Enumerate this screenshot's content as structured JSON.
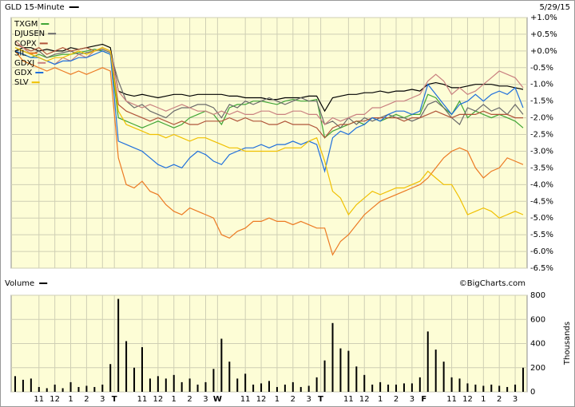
{
  "chart_data": [
    {
      "type": "line",
      "interval": "15-Minute",
      "date": "5/29/15",
      "legend": "upper left",
      "grid": true,
      "ylim": [
        -6.5,
        1.0
      ],
      "yticks": [
        {
          "value": 1.0,
          "label": "+1.0%"
        },
        {
          "value": 0.5,
          "label": "+0.5%"
        },
        {
          "value": 0,
          "label": "+0.0%"
        },
        {
          "value": -0.5,
          "label": "-0.5%"
        },
        {
          "value": -1.0,
          "label": "-1.0%"
        },
        {
          "value": -1.5,
          "label": "-1.5%"
        },
        {
          "value": -2.0,
          "label": "-2.0%"
        },
        {
          "value": -2.5,
          "label": "-2.5%"
        },
        {
          "value": -3.0,
          "label": "-3.0%"
        },
        {
          "value": -3.5,
          "label": "-3.5%"
        },
        {
          "value": -4.0,
          "label": "-4.0%"
        },
        {
          "value": -4.5,
          "label": "-4.5%"
        },
        {
          "value": -5.0,
          "label": "-5.0%"
        },
        {
          "value": -5.5,
          "label": "-5.5%"
        },
        {
          "value": -6.0,
          "label": "-6.0%"
        },
        {
          "value": -6.5,
          "label": "-6.5%"
        }
      ],
      "series": [
        {
          "name": "GLD",
          "color": "#000000",
          "values": [
            0.0,
            0.1,
            0.1,
            0.0,
            0.05,
            0.0,
            0.0,
            0.1,
            0.05,
            0.1,
            0.15,
            0.2,
            0.1,
            -1.2,
            -1.3,
            -1.35,
            -1.3,
            -1.35,
            -1.4,
            -1.35,
            -1.3,
            -1.3,
            -1.35,
            -1.3,
            -1.3,
            -1.3,
            -1.3,
            -1.35,
            -1.35,
            -1.4,
            -1.4,
            -1.4,
            -1.45,
            -1.45,
            -1.4,
            -1.4,
            -1.4,
            -1.35,
            -1.35,
            -1.8,
            -1.4,
            -1.35,
            -1.3,
            -1.3,
            -1.25,
            -1.25,
            -1.2,
            -1.25,
            -1.2,
            -1.2,
            -1.15,
            -1.2,
            -1.0,
            -0.95,
            -1.0,
            -1.1,
            -1.1,
            -1.05,
            -1.0,
            -1.0,
            -1.0,
            -1.05,
            -1.05,
            -1.1,
            -1.15
          ]
        },
        {
          "name": "TXGM",
          "color": "#3fa535",
          "values": [
            0,
            -0.1,
            -0.2,
            -0.1,
            -0.2,
            -0.15,
            -0.1,
            -0.1,
            -0.05,
            0,
            0.05,
            0,
            -0.1,
            -2.0,
            -2.1,
            -2.2,
            -2.3,
            -2.2,
            -2.1,
            -2.2,
            -2.3,
            -2.2,
            -2.0,
            -1.9,
            -1.8,
            -1.9,
            -2.2,
            -1.7,
            -1.6,
            -1.6,
            -1.5,
            -1.5,
            -1.55,
            -1.6,
            -1.5,
            -1.45,
            -1.5,
            -1.5,
            -1.45,
            -2.6,
            -2.4,
            -2.3,
            -2.2,
            -2.1,
            -2.2,
            -2.0,
            -2.1,
            -2.0,
            -1.9,
            -2.0,
            -1.9,
            -1.9,
            -1.3,
            -1.4,
            -1.7,
            -1.9,
            -1.5,
            -2.0,
            -1.8,
            -1.9,
            -2.0,
            -1.9,
            -2.0,
            -2.1,
            -2.3
          ]
        },
        {
          "name": "DJUSEN",
          "color": "#6b6b6b",
          "values": [
            0.1,
            0.0,
            -0.1,
            0.0,
            -0.2,
            -0.1,
            -0.05,
            0,
            -0.1,
            -0.05,
            0,
            0.05,
            -0.05,
            -0.9,
            -1.5,
            -1.7,
            -1.6,
            -1.8,
            -1.9,
            -2.0,
            -1.8,
            -1.7,
            -1.7,
            -1.6,
            -1.6,
            -1.7,
            -2.0,
            -1.6,
            -1.7,
            -1.5,
            -1.6,
            -1.5,
            -1.4,
            -1.5,
            -1.6,
            -1.5,
            -1.4,
            -1.5,
            -1.5,
            -2.2,
            -2.1,
            -2.3,
            -2.0,
            -2.2,
            -2.0,
            -2.1,
            -2.0,
            -1.9,
            -2.0,
            -2.0,
            -2.1,
            -2.0,
            -1.6,
            -1.5,
            -1.7,
            -2.0,
            -2.2,
            -1.7,
            -1.8,
            -1.6,
            -1.8,
            -1.7,
            -1.9,
            -1.6,
            -1.9
          ]
        },
        {
          "name": "COPX",
          "color": "#b0553a",
          "values": [
            0.2,
            0.1,
            0,
            0.1,
            -0.1,
            0,
            0.1,
            0,
            0.05,
            0.1,
            0,
            0.1,
            0,
            -1.6,
            -1.8,
            -1.9,
            -2.0,
            -2.1,
            -2.0,
            -2.1,
            -2.2,
            -2.1,
            -2.2,
            -2.2,
            -2.1,
            -2.1,
            -2.1,
            -2.0,
            -2.1,
            -2.0,
            -2.1,
            -2.1,
            -2.2,
            -2.2,
            -2.1,
            -2.2,
            -2.2,
            -2.2,
            -2.3,
            -2.6,
            -2.3,
            -2.2,
            -2.2,
            -2.1,
            -2.1,
            -2.0,
            -2.0,
            -2.0,
            -2.0,
            -2.1,
            -2.0,
            -2.0,
            -1.9,
            -1.8,
            -1.9,
            -2.0,
            -1.9,
            -1.9,
            -1.9,
            -1.8,
            -1.9,
            -1.9,
            -1.9,
            -2.0,
            -2.0
          ]
        },
        {
          "name": "SIL",
          "color": "#ec7a23",
          "values": [
            0,
            -0.3,
            -0.4,
            -0.5,
            -0.6,
            -0.5,
            -0.6,
            -0.7,
            -0.6,
            -0.7,
            -0.6,
            -0.5,
            -0.6,
            -3.2,
            -4.0,
            -4.1,
            -3.9,
            -4.2,
            -4.3,
            -4.6,
            -4.8,
            -4.9,
            -4.7,
            -4.8,
            -4.9,
            -5.0,
            -5.5,
            -5.6,
            -5.4,
            -5.3,
            -5.1,
            -5.1,
            -5.0,
            -5.1,
            -5.1,
            -5.2,
            -5.1,
            -5.2,
            -5.3,
            -5.3,
            -6.1,
            -5.7,
            -5.5,
            -5.2,
            -4.9,
            -4.7,
            -4.5,
            -4.4,
            -4.3,
            -4.2,
            -4.1,
            -4.0,
            -3.8,
            -3.5,
            -3.2,
            -3.0,
            -2.9,
            -3.0,
            -3.5,
            -3.8,
            -3.6,
            -3.5,
            -3.2,
            -3.3,
            -3.4
          ]
        },
        {
          "name": "GDXJ",
          "color": "#c98080",
          "values": [
            0.3,
            0.1,
            -0.1,
            -0.2,
            -0.3,
            -0.4,
            -0.2,
            -0.3,
            -0.1,
            -0.2,
            0,
            0.1,
            0,
            -1.2,
            -1.5,
            -1.6,
            -1.7,
            -1.6,
            -1.7,
            -1.8,
            -1.7,
            -1.6,
            -1.7,
            -1.8,
            -1.8,
            -1.9,
            -1.8,
            -1.9,
            -1.8,
            -1.9,
            -1.9,
            -1.8,
            -1.8,
            -1.9,
            -1.9,
            -1.8,
            -1.8,
            -1.9,
            -1.9,
            -2.2,
            -2.0,
            -2.1,
            -2.0,
            -1.9,
            -1.9,
            -1.7,
            -1.7,
            -1.6,
            -1.5,
            -1.5,
            -1.4,
            -1.3,
            -0.9,
            -0.7,
            -0.9,
            -1.3,
            -1.1,
            -1.3,
            -1.2,
            -1.0,
            -0.8,
            -0.6,
            -0.7,
            -0.8,
            -1.1
          ]
        },
        {
          "name": "GDX",
          "color": "#1f6fdc",
          "values": [
            0,
            -0.1,
            -0.2,
            -0.2,
            -0.3,
            -0.4,
            -0.3,
            -0.3,
            -0.2,
            -0.2,
            -0.1,
            0,
            -0.1,
            -2.7,
            -2.8,
            -2.9,
            -3.0,
            -3.2,
            -3.4,
            -3.5,
            -3.4,
            -3.5,
            -3.2,
            -3.0,
            -3.1,
            -3.3,
            -3.4,
            -3.1,
            -3.0,
            -2.9,
            -2.9,
            -2.8,
            -2.9,
            -2.8,
            -2.8,
            -2.7,
            -2.8,
            -2.7,
            -2.8,
            -3.6,
            -2.6,
            -2.4,
            -2.5,
            -2.3,
            -2.2,
            -2.0,
            -2.1,
            -1.9,
            -1.8,
            -1.8,
            -1.9,
            -1.8,
            -1.0,
            -1.3,
            -1.6,
            -1.9,
            -1.6,
            -1.5,
            -1.3,
            -1.5,
            -1.3,
            -1.2,
            -1.3,
            -1.1,
            -1.7
          ]
        },
        {
          "name": "SLV",
          "color": "#f0c000",
          "values": [
            0.1,
            0,
            -0.1,
            -0.2,
            -0.3,
            -0.2,
            -0.2,
            -0.1,
            0,
            -0.1,
            0,
            0.1,
            0,
            -1.8,
            -2.2,
            -2.3,
            -2.4,
            -2.5,
            -2.5,
            -2.6,
            -2.5,
            -2.6,
            -2.7,
            -2.6,
            -2.6,
            -2.7,
            -2.8,
            -2.9,
            -2.9,
            -3.0,
            -3.0,
            -3.0,
            -3.0,
            -3.0,
            -2.9,
            -2.9,
            -2.9,
            -2.7,
            -2.6,
            -3.3,
            -4.2,
            -4.4,
            -4.9,
            -4.6,
            -4.4,
            -4.2,
            -4.3,
            -4.2,
            -4.1,
            -4.1,
            -4.0,
            -3.9,
            -3.6,
            -3.8,
            -4.0,
            -4.0,
            -4.4,
            -4.9,
            -4.8,
            -4.7,
            -4.8,
            -5.0,
            -4.9,
            -4.8,
            -4.9
          ]
        }
      ]
    },
    {
      "type": "bar",
      "title": "Volume",
      "source": "©BigCharts.com",
      "y_label": "Thousands",
      "color": "#000000",
      "grid": true,
      "ylim": [
        0,
        800
      ],
      "yticks": [
        0,
        200,
        400,
        600,
        800
      ],
      "categories": [
        null,
        null,
        null,
        "11",
        null,
        "12",
        null,
        "1",
        null,
        "2",
        null,
        "3",
        null,
        "T",
        null,
        null,
        "11",
        null,
        "12",
        null,
        "1",
        null,
        "2",
        null,
        "3",
        null,
        "W",
        null,
        null,
        "11",
        null,
        "12",
        null,
        "1",
        null,
        "2",
        null,
        "3",
        null,
        "T",
        null,
        null,
        "11",
        null,
        "12",
        null,
        "1",
        null,
        "2",
        null,
        "3",
        null,
        "F",
        null,
        null,
        "11",
        null,
        "12",
        null,
        "1",
        null,
        "2",
        null,
        "3",
        null
      ],
      "values": [
        130,
        100,
        110,
        40,
        30,
        60,
        30,
        80,
        40,
        50,
        40,
        60,
        230,
        770,
        420,
        200,
        370,
        110,
        130,
        110,
        140,
        80,
        110,
        60,
        80,
        190,
        440,
        250,
        110,
        150,
        60,
        70,
        90,
        40,
        60,
        80,
        40,
        50,
        120,
        260,
        570,
        360,
        340,
        210,
        140,
        60,
        80,
        60,
        60,
        70,
        70,
        120,
        500,
        350,
        250,
        120,
        110,
        70,
        60,
        50,
        60,
        50,
        40,
        60,
        200
      ]
    }
  ]
}
